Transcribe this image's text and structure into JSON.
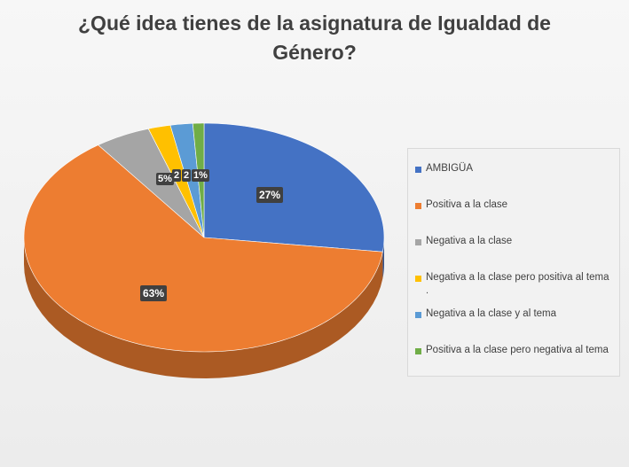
{
  "chart_data": {
    "type": "pie",
    "title": "¿Qué idea tienes de la asignatura de Igualdad de Género?",
    "categories": [
      "AMBIGÜA",
      "Positiva a la clase",
      "Negativa a la clase",
      "Negativa a la clase pero positiva al tema",
      "Negativa a la clase y al tema",
      "Positiva a la clase pero negativa al tema"
    ],
    "values": [
      27,
      63,
      5,
      2,
      2,
      1
    ],
    "data_labels": [
      "27%",
      "63%",
      "5%",
      "2",
      "2",
      "1%"
    ],
    "colors": [
      "#4472c4",
      "#ed7d31",
      "#a5a5a5",
      "#ffc000",
      "#5b9bd5",
      "#70ad47"
    ],
    "legend_position": "right",
    "legend_extra_mark": "."
  }
}
